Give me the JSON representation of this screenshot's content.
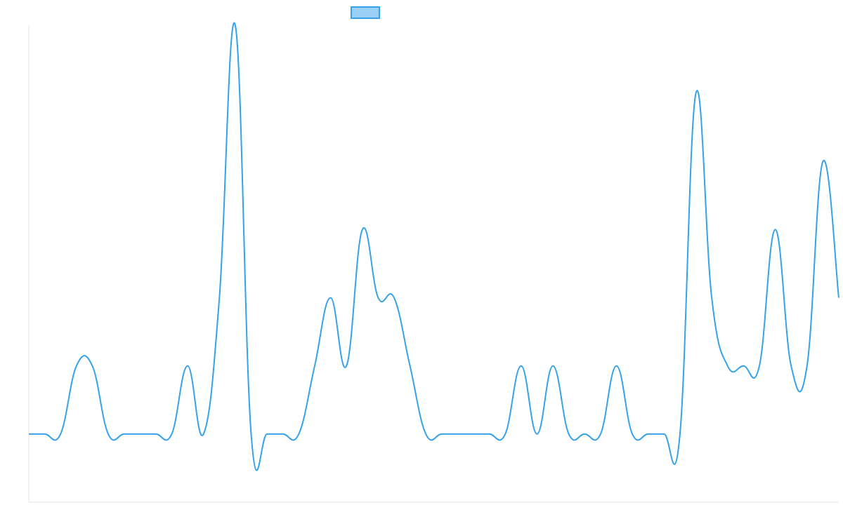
{
  "chart_data": {
    "type": "line",
    "series": [
      {
        "color": "#36a2eb",
        "values": [
          0,
          0,
          0,
          1,
          1,
          0,
          0,
          0,
          0,
          0,
          1,
          0,
          2,
          6,
          0,
          0,
          0,
          0,
          1,
          2,
          1,
          3,
          2,
          2,
          1,
          0,
          0,
          0,
          0,
          0,
          0,
          1,
          0,
          1,
          0,
          0,
          0,
          1,
          0,
          0,
          0,
          0,
          5,
          2,
          1,
          1,
          1,
          3,
          1,
          1,
          4,
          2
        ]
      }
    ],
    "ylim": [
      -1,
      6
    ]
  }
}
